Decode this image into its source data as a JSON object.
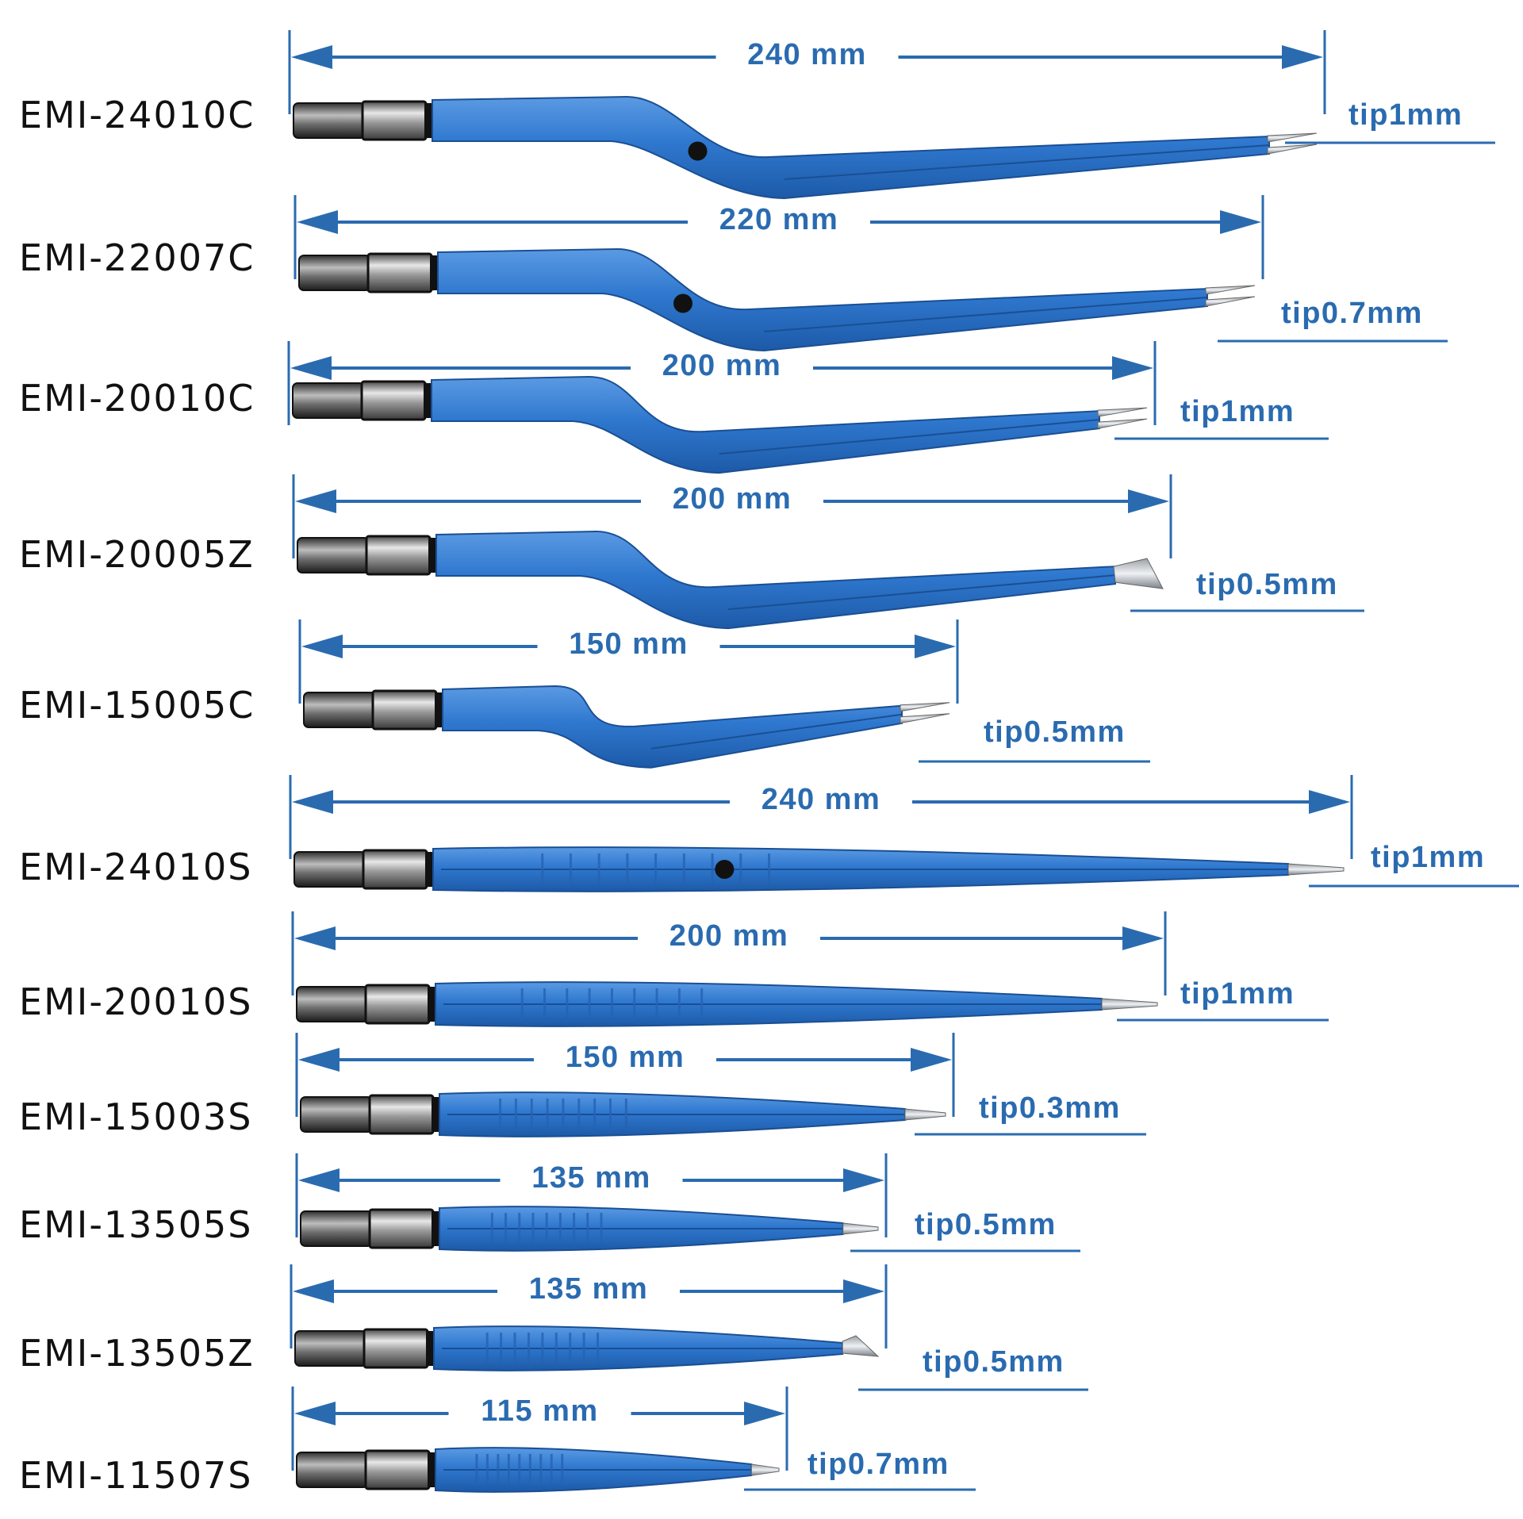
{
  "accent": "#2a6bb0",
  "instrument_color": "#2d74c9",
  "instruments": [
    {
      "model": "EMI-24010C",
      "length": "240 mm",
      "tip": "tip1mm",
      "style": "bayonet",
      "icon": "bipolar-forceps-bayonet"
    },
    {
      "model": "EMI-22007C",
      "length": "220 mm",
      "tip": "tip0.7mm",
      "style": "bayonet",
      "icon": "bipolar-forceps-bayonet"
    },
    {
      "model": "EMI-20010C",
      "length": "200 mm",
      "tip": "tip1mm",
      "style": "bayonet",
      "icon": "bipolar-forceps-bayonet"
    },
    {
      "model": "EMI-20005Z",
      "length": "200 mm",
      "tip": "tip0.5mm",
      "style": "bayonet-angled",
      "icon": "bipolar-forceps-bayonet-angled"
    },
    {
      "model": "EMI-15005C",
      "length": "150 mm",
      "tip": "tip0.5mm",
      "style": "bayonet",
      "icon": "bipolar-forceps-bayonet"
    },
    {
      "model": "EMI-24010S",
      "length": "240 mm",
      "tip": "tip1mm",
      "style": "straight",
      "icon": "bipolar-forceps-straight"
    },
    {
      "model": "EMI-20010S",
      "length": "200 mm",
      "tip": "tip1mm",
      "style": "straight",
      "icon": "bipolar-forceps-straight"
    },
    {
      "model": "EMI-15003S",
      "length": "150 mm",
      "tip": "tip0.3mm",
      "style": "straight",
      "icon": "bipolar-forceps-straight"
    },
    {
      "model": "EMI-13505S",
      "length": "135 mm",
      "tip": "tip0.5mm",
      "style": "straight",
      "icon": "bipolar-forceps-straight"
    },
    {
      "model": "EMI-13505Z",
      "length": "135 mm",
      "tip": "tip0.5mm",
      "style": "straight-angled",
      "icon": "bipolar-forceps-angled"
    },
    {
      "model": "EMI-11507S",
      "length": "115 mm",
      "tip": "tip0.7mm",
      "style": "straight",
      "icon": "bipolar-forceps-straight"
    }
  ]
}
